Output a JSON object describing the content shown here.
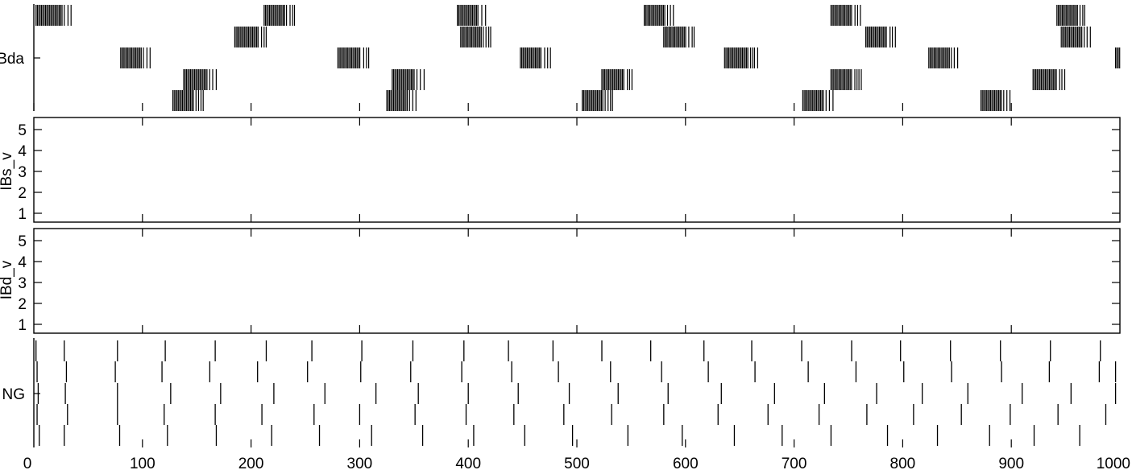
{
  "chart_data": [
    {
      "type": "raster",
      "ylabel": "Bda",
      "x_range": [
        0,
        1000
      ],
      "row_count": 5,
      "rows": [
        {
          "bursts": [
            [
              2,
              37
            ],
            [
              212,
              240
            ],
            [
              390,
              418
            ],
            [
              562,
              590
            ],
            [
              734,
              762
            ],
            [
              942,
              970
            ]
          ]
        },
        {
          "bursts": [
            [
              185,
              217
            ],
            [
              393,
              422
            ],
            [
              580,
              610
            ],
            [
              766,
              794
            ],
            [
              946,
              975
            ]
          ]
        },
        {
          "bursts": [
            [
              80,
              108
            ],
            [
              280,
              310
            ],
            [
              448,
              476
            ],
            [
              636,
              668
            ],
            [
              824,
              852
            ],
            [
              996,
              1000
            ]
          ]
        },
        {
          "bursts": [
            [
              138,
              170
            ],
            [
              330,
              360
            ],
            [
              523,
              553
            ],
            [
              734,
              762
            ],
            [
              920,
              952
            ]
          ]
        },
        {
          "bursts": [
            [
              128,
              156
            ],
            [
              325,
              353
            ],
            [
              505,
              533
            ],
            [
              708,
              737
            ],
            [
              872,
              900
            ]
          ]
        }
      ]
    },
    {
      "type": "raster",
      "ylabel": "IBs_v",
      "x_range": [
        0,
        1000
      ],
      "yticks": [
        "1",
        "2",
        "3",
        "4",
        "5"
      ],
      "rows": []
    },
    {
      "type": "raster",
      "ylabel": "IBd_v",
      "x_range": [
        0,
        1000
      ],
      "yticks": [
        "1",
        "2",
        "3",
        "4",
        "5"
      ],
      "rows": []
    },
    {
      "type": "raster",
      "ylabel": "NG",
      "x_range": [
        0,
        1000
      ],
      "xticks": [
        "0",
        "100",
        "200",
        "300",
        "400",
        "500",
        "600",
        "700",
        "800",
        "900",
        "1000"
      ],
      "rows": [
        {
          "spikes": [
            2,
            28,
            77,
            121,
            167,
            214,
            256,
            302,
            349,
            396,
            437,
            478,
            523,
            568,
            617,
            661,
            707,
            753,
            798,
            844,
            890,
            936,
            982
          ]
        },
        {
          "spikes": [
            3,
            30,
            75,
            118,
            162,
            206,
            252,
            301,
            347,
            394,
            440,
            483,
            531,
            578,
            621,
            664,
            713,
            757,
            801,
            845,
            891,
            935,
            981,
            996
          ]
        },
        {
          "spikes": [
            4,
            29,
            77,
            126,
            172,
            221,
            268,
            315,
            354,
            400,
            446,
            493,
            538,
            584,
            633,
            682,
            728,
            776,
            818,
            860,
            910,
            955,
            996
          ]
        },
        {
          "spikes": [
            3,
            31,
            77,
            120,
            167,
            210,
            258,
            300,
            351,
            398,
            442,
            488,
            532,
            580,
            630,
            676,
            723,
            767,
            810,
            854,
            899,
            943,
            987
          ]
        },
        {
          "spikes": [
            5,
            28,
            79,
            123,
            168,
            219,
            263,
            311,
            358,
            405,
            452,
            496,
            547,
            597,
            645,
            689,
            734,
            786,
            832,
            880,
            921,
            963
          ]
        }
      ]
    }
  ]
}
